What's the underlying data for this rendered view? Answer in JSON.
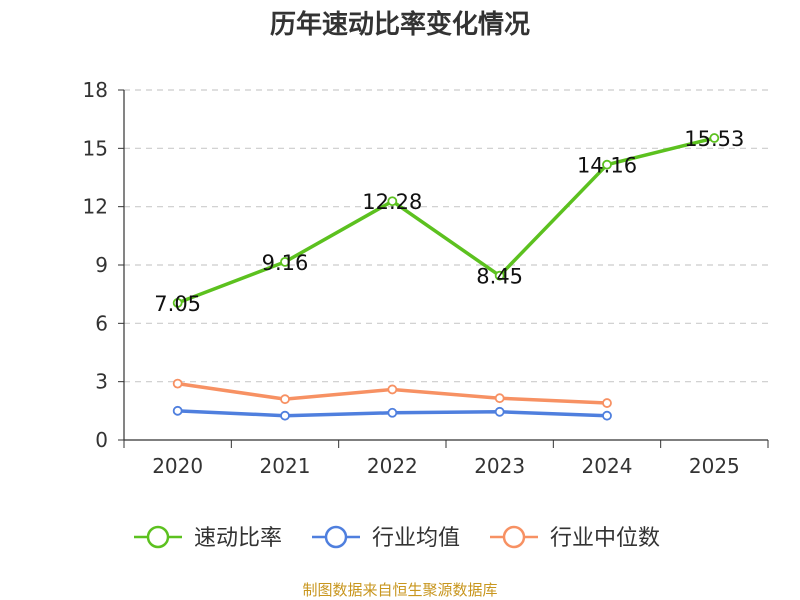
{
  "chart_data": {
    "type": "line",
    "title": "历年速动比率变化情况",
    "categories": [
      "2020",
      "2021",
      "2022",
      "2023",
      "2024",
      "2025"
    ],
    "ylim": [
      0,
      18
    ],
    "yticks": [
      0,
      3,
      6,
      9,
      12,
      15,
      18
    ],
    "grid": "horizontal-dashed",
    "legend_position": "bottom",
    "series": [
      {
        "name": "速动比率",
        "color": "#5cc11f",
        "values": [
          7.05,
          9.16,
          12.28,
          8.45,
          14.16,
          15.53
        ],
        "show_labels": true,
        "labels": [
          "7.05",
          "9.16",
          "12.28",
          "8.45",
          "14.16",
          "15.53"
        ]
      },
      {
        "name": "行业均值",
        "color": "#4f7fde",
        "values": [
          1.5,
          1.25,
          1.4,
          1.45,
          1.25,
          null
        ],
        "show_labels": false
      },
      {
        "name": "行业中位数",
        "color": "#f79163",
        "values": [
          2.9,
          2.1,
          2.6,
          2.15,
          1.9,
          null
        ],
        "show_labels": false
      }
    ],
    "source": "制图数据来自恒生聚源数据库",
    "source_color": "#c8961e"
  }
}
